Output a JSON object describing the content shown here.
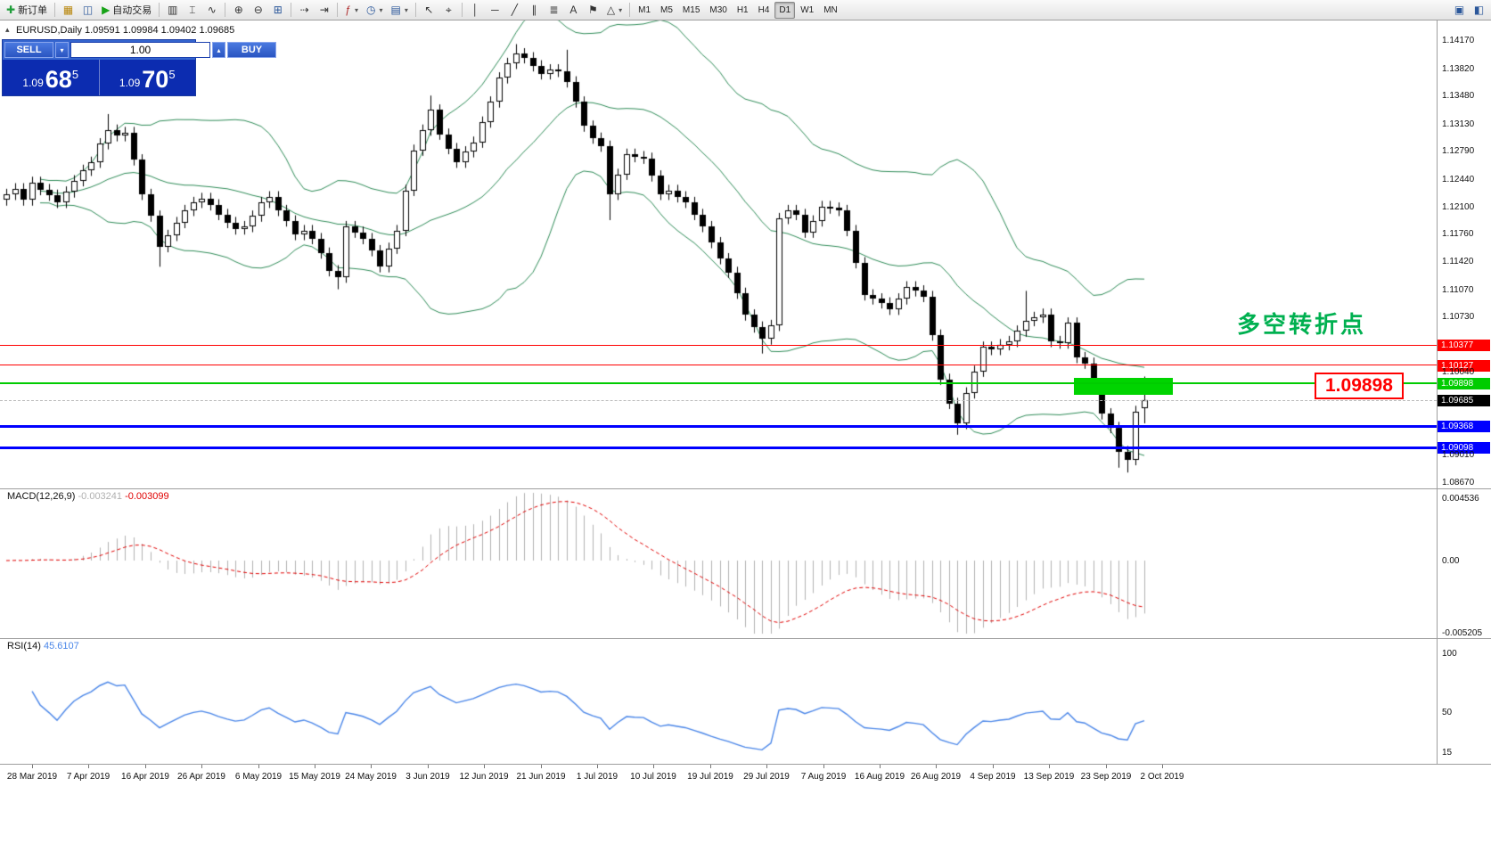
{
  "toolbar": {
    "buttons": [
      {
        "name": "new-order-button",
        "glyph": "✚",
        "color": "#1f9d3a",
        "label": "新订单"
      },
      {
        "name": "separator"
      },
      {
        "name": "charts-button",
        "glyph": "▦",
        "color": "#b8860b"
      },
      {
        "name": "profiles-button",
        "glyph": "◫",
        "color": "#2b579a"
      },
      {
        "name": "autotrading-button",
        "glyph": "▶",
        "color": "#17a317",
        "label": "自动交易"
      },
      {
        "name": "separator"
      },
      {
        "name": "bar-chart-button",
        "glyph": "▥",
        "color": "#333333"
      },
      {
        "name": "candlestick-chart-button",
        "glyph": "⌶",
        "color": "#333333"
      },
      {
        "name": "line-chart-button",
        "glyph": "∿",
        "color": "#333333"
      },
      {
        "name": "separator"
      },
      {
        "name": "zoom-in-button",
        "glyph": "⊕",
        "color": "#333333"
      },
      {
        "name": "zoom-out-button",
        "glyph": "⊖",
        "color": "#333333"
      },
      {
        "name": "tile-windows-button",
        "glyph": "⊞",
        "color": "#2b579a"
      },
      {
        "name": "separator"
      },
      {
        "name": "auto-scroll-button",
        "glyph": "⇢",
        "color": "#333333"
      },
      {
        "name": "chart-shift-button",
        "glyph": "⇥",
        "color": "#333333"
      },
      {
        "name": "separator"
      },
      {
        "name": "indicators-button",
        "glyph": "ƒ",
        "color": "#b03030",
        "dropdown": true
      },
      {
        "name": "periods-button",
        "glyph": "◷",
        "color": "#2b579a",
        "dropdown": true
      },
      {
        "name": "templates-button",
        "glyph": "▤",
        "color": "#2b579a",
        "dropdown": true
      },
      {
        "name": "separator"
      },
      {
        "name": "cursor-button",
        "glyph": "↖",
        "color": "#333333"
      },
      {
        "name": "crosshair-button",
        "glyph": "⌖",
        "color": "#333333"
      },
      {
        "name": "separator"
      },
      {
        "name": "vertical-line-button",
        "glyph": "│",
        "color": "#333333"
      },
      {
        "name": "horizontal-line-button",
        "glyph": "─",
        "color": "#333333"
      },
      {
        "name": "trendline-button",
        "glyph": "╱",
        "color": "#333333"
      },
      {
        "name": "channel-button",
        "glyph": "∥",
        "color": "#333333"
      },
      {
        "name": "fibonacci-button",
        "glyph": "≣",
        "color": "#333333"
      },
      {
        "name": "text-button",
        "glyph": "A",
        "color": "#333333"
      },
      {
        "name": "label-button",
        "glyph": "⚑",
        "color": "#333333"
      },
      {
        "name": "shapes-button",
        "glyph": "△",
        "color": "#333333",
        "dropdown": true
      },
      {
        "name": "separator"
      }
    ],
    "timeframes": [
      {
        "name": "timeframe-m1",
        "label": "M1"
      },
      {
        "name": "timeframe-m5",
        "label": "M5"
      },
      {
        "name": "timeframe-m15",
        "label": "M15"
      },
      {
        "name": "timeframe-m30",
        "label": "M30"
      },
      {
        "name": "timeframe-h1",
        "label": "H1"
      },
      {
        "name": "timeframe-h4",
        "label": "H4"
      },
      {
        "name": "timeframe-d1",
        "label": "D1",
        "active": true
      },
      {
        "name": "timeframe-w1",
        "label": "W1"
      },
      {
        "name": "timeframe-mn",
        "label": "MN"
      }
    ],
    "right_buttons": [
      {
        "name": "window-layout-button",
        "glyph": "▣",
        "color": "#2b579a"
      },
      {
        "name": "chart-properties-button",
        "glyph": "◧",
        "color": "#2b579a"
      }
    ]
  },
  "chart": {
    "symbol_label": "EURUSD,Daily 1.09591 1.09984 1.09402 1.09685",
    "one_click": {
      "sell_label": "SELL",
      "buy_label": "BUY",
      "volume": "1.00",
      "sell_price": {
        "prefix": "1.09",
        "big": "68",
        "sup": "5"
      },
      "buy_price": {
        "prefix": "1.09",
        "big": "70",
        "sup": "5"
      }
    }
  },
  "chart_data": {
    "type": "candlestick",
    "symbol": "EURUSD",
    "timeframe": "Daily",
    "ohlc_display": {
      "open": "1.09591",
      "high": "1.09984",
      "low": "1.09402",
      "close": "1.09685"
    },
    "style": {
      "bull": "#FFFFFF",
      "bear": "#000000",
      "wick": "#000000",
      "background": "#FFFFFF"
    },
    "candles": [
      [
        1.1218,
        1.1232,
        1.1211,
        1.1225
      ],
      [
        1.1225,
        1.1239,
        1.1218,
        1.1232
      ],
      [
        1.1232,
        1.1239,
        1.1211,
        1.1218
      ],
      [
        1.1218,
        1.1247,
        1.1211,
        1.124
      ],
      [
        1.124,
        1.1247,
        1.1224,
        1.1231
      ],
      [
        1.1231,
        1.1238,
        1.1217,
        1.1224
      ],
      [
        1.1224,
        1.1231,
        1.1208,
        1.1215
      ],
      [
        1.1215,
        1.1235,
        1.1208,
        1.1228
      ],
      [
        1.1228,
        1.1249,
        1.1221,
        1.1242
      ],
      [
        1.1242,
        1.1262,
        1.1235,
        1.1255
      ],
      [
        1.1255,
        1.1272,
        1.1248,
        1.1265
      ],
      [
        1.1265,
        1.1295,
        1.1258,
        1.1288
      ],
      [
        1.1288,
        1.1325,
        1.1281,
        1.1305
      ],
      [
        1.1305,
        1.1312,
        1.1291,
        1.1298
      ],
      [
        1.1298,
        1.1309,
        1.1291,
        1.1302
      ],
      [
        1.1302,
        1.1309,
        1.1261,
        1.1268
      ],
      [
        1.1268,
        1.1275,
        1.1218,
        1.1225
      ],
      [
        1.1225,
        1.1232,
        1.1191,
        1.1198
      ],
      [
        1.1198,
        1.1205,
        1.1135,
        1.116
      ],
      [
        1.116,
        1.1181,
        1.1153,
        1.1174
      ],
      [
        1.1174,
        1.1197,
        1.1167,
        1.119
      ],
      [
        1.119,
        1.1212,
        1.1183,
        1.1205
      ],
      [
        1.1205,
        1.1222,
        1.1198,
        1.1215
      ],
      [
        1.1215,
        1.1227,
        1.1208,
        1.122
      ],
      [
        1.122,
        1.1227,
        1.1205,
        1.1212
      ],
      [
        1.1212,
        1.1219,
        1.1193,
        1.12
      ],
      [
        1.12,
        1.1207,
        1.1183,
        1.119
      ],
      [
        1.119,
        1.1197,
        1.1175,
        1.1182
      ],
      [
        1.1182,
        1.1192,
        1.1175,
        1.1185
      ],
      [
        1.1185,
        1.1205,
        1.1178,
        1.1198
      ],
      [
        1.1198,
        1.1222,
        1.1191,
        1.1215
      ],
      [
        1.1215,
        1.1229,
        1.1208,
        1.1222
      ],
      [
        1.1222,
        1.1229,
        1.1198,
        1.1205
      ],
      [
        1.1205,
        1.1212,
        1.1185,
        1.1192
      ],
      [
        1.1192,
        1.1199,
        1.1168,
        1.1175
      ],
      [
        1.1175,
        1.1187,
        1.1168,
        1.118
      ],
      [
        1.118,
        1.1187,
        1.1163,
        1.117
      ],
      [
        1.117,
        1.1177,
        1.1145,
        1.1152
      ],
      [
        1.1152,
        1.1159,
        1.1123,
        1.113
      ],
      [
        1.113,
        1.1137,
        1.1107,
        1.1122
      ],
      [
        1.1122,
        1.1192,
        1.1115,
        1.1185
      ],
      [
        1.1185,
        1.1192,
        1.1171,
        1.1178
      ],
      [
        1.1178,
        1.1185,
        1.1163,
        1.117
      ],
      [
        1.117,
        1.1177,
        1.1148,
        1.1155
      ],
      [
        1.1155,
        1.1162,
        1.1128,
        1.1135
      ],
      [
        1.1135,
        1.1165,
        1.1128,
        1.1158
      ],
      [
        1.1158,
        1.1187,
        1.1151,
        1.118
      ],
      [
        1.118,
        1.1237,
        1.1173,
        1.123
      ],
      [
        1.123,
        1.1287,
        1.1223,
        1.128
      ],
      [
        1.128,
        1.1312,
        1.1273,
        1.1305
      ],
      [
        1.1305,
        1.1348,
        1.1298,
        1.133
      ],
      [
        1.133,
        1.1337,
        1.1293,
        1.13
      ],
      [
        1.13,
        1.1307,
        1.1275,
        1.1282
      ],
      [
        1.1282,
        1.1289,
        1.1258,
        1.1265
      ],
      [
        1.1265,
        1.1285,
        1.1258,
        1.1278
      ],
      [
        1.1278,
        1.1297,
        1.1271,
        1.129
      ],
      [
        1.129,
        1.1322,
        1.1283,
        1.1315
      ],
      [
        1.1315,
        1.1347,
        1.1308,
        1.134
      ],
      [
        1.134,
        1.1377,
        1.1333,
        1.137
      ],
      [
        1.137,
        1.1395,
        1.1363,
        1.1388
      ],
      [
        1.1388,
        1.1412,
        1.1381,
        1.14
      ],
      [
        1.14,
        1.1407,
        1.1388,
        1.1395
      ],
      [
        1.1395,
        1.1402,
        1.1378,
        1.1385
      ],
      [
        1.1385,
        1.1392,
        1.1368,
        1.1375
      ],
      [
        1.1375,
        1.1387,
        1.1368,
        1.138
      ],
      [
        1.138,
        1.1387,
        1.1371,
        1.1378
      ],
      [
        1.1378,
        1.1405,
        1.1358,
        1.1365
      ],
      [
        1.1365,
        1.1372,
        1.1333,
        1.134
      ],
      [
        1.134,
        1.1347,
        1.1303,
        1.131
      ],
      [
        1.131,
        1.1317,
        1.1288,
        1.1295
      ],
      [
        1.1295,
        1.1302,
        1.1278,
        1.1285
      ],
      [
        1.1285,
        1.1292,
        1.1193,
        1.1225
      ],
      [
        1.1225,
        1.1257,
        1.1218,
        1.125
      ],
      [
        1.125,
        1.1282,
        1.1243,
        1.1275
      ],
      [
        1.1275,
        1.1282,
        1.1265,
        1.1272
      ],
      [
        1.1272,
        1.1279,
        1.1263,
        1.127
      ],
      [
        1.127,
        1.1277,
        1.1241,
        1.1248
      ],
      [
        1.1248,
        1.1255,
        1.1218,
        1.1225
      ],
      [
        1.1225,
        1.1237,
        1.1218,
        1.123
      ],
      [
        1.123,
        1.1237,
        1.1215,
        1.1222
      ],
      [
        1.1222,
        1.1229,
        1.1208,
        1.1215
      ],
      [
        1.1215,
        1.1222,
        1.1193,
        1.12
      ],
      [
        1.12,
        1.1207,
        1.1178,
        1.1185
      ],
      [
        1.1185,
        1.1192,
        1.1158,
        1.1165
      ],
      [
        1.1165,
        1.1172,
        1.1138,
        1.1145
      ],
      [
        1.1145,
        1.1152,
        1.1121,
        1.1128
      ],
      [
        1.1128,
        1.1135,
        1.1095,
        1.1102
      ],
      [
        1.1102,
        1.1109,
        1.1068,
        1.1075
      ],
      [
        1.1075,
        1.1082,
        1.1053,
        1.106
      ],
      [
        1.106,
        1.1067,
        1.1027,
        1.1045
      ],
      [
        1.1045,
        1.1069,
        1.1038,
        1.1062
      ],
      [
        1.1062,
        1.1202,
        1.1055,
        1.1195
      ],
      [
        1.1195,
        1.1212,
        1.1188,
        1.1205
      ],
      [
        1.1205,
        1.1212,
        1.1193,
        1.12
      ],
      [
        1.12,
        1.1207,
        1.1171,
        1.1178
      ],
      [
        1.1178,
        1.1199,
        1.1171,
        1.1192
      ],
      [
        1.1192,
        1.1217,
        1.1185,
        1.121
      ],
      [
        1.121,
        1.1217,
        1.1201,
        1.1208
      ],
      [
        1.1208,
        1.1215,
        1.1198,
        1.1205
      ],
      [
        1.1205,
        1.1212,
        1.1173,
        1.118
      ],
      [
        1.118,
        1.1187,
        1.1133,
        1.114
      ],
      [
        1.114,
        1.1147,
        1.1093,
        1.11
      ],
      [
        1.11,
        1.1107,
        1.1088,
        1.1095
      ],
      [
        1.1095,
        1.1102,
        1.1083,
        1.109
      ],
      [
        1.109,
        1.1097,
        1.1075,
        1.1082
      ],
      [
        1.1082,
        1.1102,
        1.1075,
        1.1095
      ],
      [
        1.1095,
        1.1117,
        1.1088,
        1.111
      ],
      [
        1.111,
        1.1117,
        1.1098,
        1.1105
      ],
      [
        1.1105,
        1.1112,
        1.1091,
        1.1098
      ],
      [
        1.1098,
        1.1105,
        1.1043,
        1.105
      ],
      [
        1.105,
        1.1057,
        1.0988,
        1.0995
      ],
      [
        1.0995,
        1.1002,
        1.0958,
        1.0965
      ],
      [
        1.0965,
        1.0972,
        1.0926,
        1.094
      ],
      [
        1.094,
        1.0985,
        1.0933,
        1.0978
      ],
      [
        1.0978,
        1.1012,
        1.0971,
        1.1005
      ],
      [
        1.1005,
        1.1042,
        1.0998,
        1.1035
      ],
      [
        1.1035,
        1.1042,
        1.1025,
        1.1032
      ],
      [
        1.1032,
        1.1045,
        1.1025,
        1.1038
      ],
      [
        1.1038,
        1.1049,
        1.1031,
        1.1042
      ],
      [
        1.1042,
        1.1062,
        1.1035,
        1.1055
      ],
      [
        1.1055,
        1.1105,
        1.1048,
        1.1068
      ],
      [
        1.1068,
        1.1079,
        1.1061,
        1.1072
      ],
      [
        1.1072,
        1.1083,
        1.1065,
        1.1076
      ],
      [
        1.1076,
        1.1083,
        1.1035,
        1.1042
      ],
      [
        1.1042,
        1.1049,
        1.1033,
        1.104
      ],
      [
        1.104,
        1.1072,
        1.1033,
        1.1065
      ],
      [
        1.1065,
        1.1072,
        1.1015,
        1.1022
      ],
      [
        1.1022,
        1.1029,
        1.1008,
        1.1015
      ],
      [
        1.1015,
        1.1022,
        1.0978,
        1.0985
      ],
      [
        1.0985,
        1.0992,
        1.0945,
        1.0952
      ],
      [
        1.0952,
        1.0959,
        1.0928,
        1.0935
      ],
      [
        1.0935,
        1.0942,
        1.0885,
        1.0905
      ],
      [
        1.0905,
        1.0912,
        1.0879,
        1.0895
      ],
      [
        1.0895,
        1.0962,
        1.0888,
        1.0955
      ],
      [
        1.09591,
        1.09984,
        1.09402,
        1.09685
      ]
    ],
    "bollinger": {
      "period": 20,
      "deviation": 2,
      "color": "#2E8B57"
    },
    "levels": [
      {
        "value": 1.10377,
        "label": "1.10377",
        "color": "#FF0000",
        "width": 1
      },
      {
        "value": 1.10127,
        "label": "1.10127",
        "color": "#FF0000",
        "width": 1
      },
      {
        "value": 1.09898,
        "label": "1.09898",
        "color": "#00CC00",
        "width": 2
      },
      {
        "value": 1.09368,
        "label": "1.09368",
        "color": "#0000FF",
        "width": 3
      },
      {
        "value": 1.09098,
        "label": "1.09098",
        "color": "#0000FF",
        "width": 3
      }
    ],
    "current_price": {
      "value": 1.09685,
      "label": "1.09685",
      "bg": "#000000"
    },
    "plain_ticks": [
      {
        "value": 1.1417,
        "label": "1.14170"
      },
      {
        "value": 1.1382,
        "label": "1.13820"
      },
      {
        "value": 1.1348,
        "label": "1.13480"
      },
      {
        "value": 1.1313,
        "label": "1.13130"
      },
      {
        "value": 1.1279,
        "label": "1.12790"
      },
      {
        "value": 1.1244,
        "label": "1.12440"
      },
      {
        "value": 1.121,
        "label": "1.12100"
      },
      {
        "value": 1.1176,
        "label": "1.11760"
      },
      {
        "value": 1.1142,
        "label": "1.11420"
      },
      {
        "value": 1.1107,
        "label": "1.11070"
      },
      {
        "value": 1.1073,
        "label": "1.10730"
      },
      {
        "value": 1.1004,
        "label": "1.10040"
      },
      {
        "value": 1.0901,
        "label": "1.09010"
      },
      {
        "value": 1.0867,
        "label": "1.08670"
      }
    ],
    "rectangle": {
      "from_index": 126,
      "to_index": 137,
      "price_top": 1.09965,
      "price_bottom": 1.09755,
      "color": "#00D400"
    },
    "annotation": {
      "text": "多空转折点",
      "color": "#00B050"
    },
    "callout": {
      "text": "1.09898",
      "color": "#FF0000"
    },
    "macd": {
      "label": "MACD(12,26,9)",
      "value_main": "-0.003241",
      "value_signal": "-0.003099",
      "fast": 12,
      "slow": 26,
      "signal": 9,
      "hist_color": "#B0B0B0",
      "signal_color": "#E00000",
      "axis": [
        {
          "value": 0.004536,
          "label": "0.004536"
        },
        {
          "value": 0,
          "label": "0.00"
        },
        {
          "value": -0.005205,
          "label": "-0.005205"
        }
      ]
    },
    "rsi": {
      "label": "RSI(14)",
      "value": "45.6107",
      "period": 14,
      "color": "#4A86E8",
      "axis": [
        {
          "value": 100,
          "label": "100"
        },
        {
          "value": 50,
          "label": "50"
        },
        {
          "value": 15,
          "label": "15"
        }
      ]
    },
    "date_axis": [
      "28 Mar 2019",
      "7 Apr 2019",
      "16 Apr 2019",
      "26 Apr 2019",
      "6 May 2019",
      "15 May 2019",
      "24 May 2019",
      "3 Jun 2019",
      "12 Jun 2019",
      "21 Jun 2019",
      "1 Jul 2019",
      "10 Jul 2019",
      "19 Jul 2019",
      "29 Jul 2019",
      "7 Aug 2019",
      "16 Aug 2019",
      "26 Aug 2019",
      "4 Sep 2019",
      "13 Sep 2019",
      "23 Sep 2019",
      "2 Oct 2019"
    ]
  }
}
